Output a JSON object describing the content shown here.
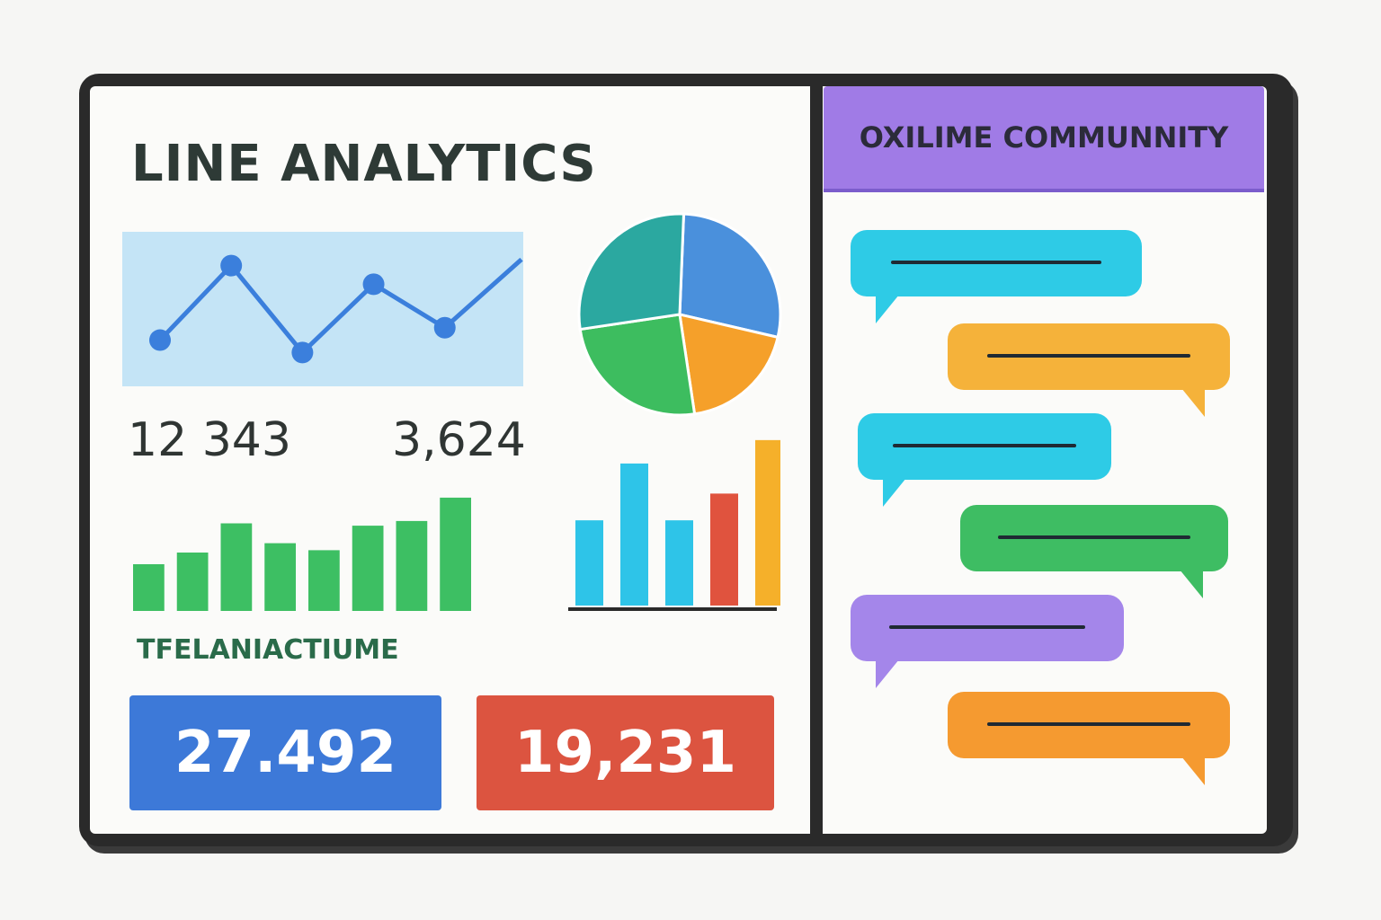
{
  "dashboard": {
    "title": "LINE ANALYTICS",
    "stats": [
      "12 343",
      "3,624"
    ],
    "caption": "TFELANIACTIUME",
    "kpis": [
      {
        "value": "27.492",
        "color": "#3d79d8"
      },
      {
        "value": "19,231",
        "color": "#dc5440"
      }
    ]
  },
  "community": {
    "title": "OXILIME COMMUNNITY",
    "header_color": "#a07be6",
    "messages": [
      {
        "side": "left",
        "color": "#2ecbe6"
      },
      {
        "side": "right",
        "color": "#f5b23a"
      },
      {
        "side": "left",
        "color": "#2ecbe6"
      },
      {
        "side": "right",
        "color": "#3ebd63"
      },
      {
        "side": "left",
        "color": "#a486ea"
      },
      {
        "side": "right",
        "color": "#f59a30"
      }
    ]
  },
  "chart_data": [
    {
      "type": "line",
      "values": [
        3,
        9,
        2,
        7.5,
        4,
        9.5
      ],
      "ylim": [
        0,
        11
      ],
      "line_color": "#3b7fdc",
      "fill_color": "#c4e4f6"
    },
    {
      "type": "pie",
      "slices": [
        {
          "value": 28,
          "color": "#4a90dc"
        },
        {
          "value": 19,
          "color": "#f5a02a"
        },
        {
          "value": 25,
          "color": "#3dbd5f"
        },
        {
          "value": 28,
          "color": "#2ba8a0"
        }
      ]
    },
    {
      "type": "bar",
      "values": [
        4,
        5,
        7.5,
        5.8,
        5.2,
        7.3,
        7.7,
        9.7
      ],
      "ylim": [
        0,
        10
      ],
      "color": "#3dbf63"
    },
    {
      "type": "bar",
      "values": [
        5.1,
        8.5,
        5.1,
        6.7,
        9.9
      ],
      "ylim": [
        0,
        10
      ],
      "colors": [
        "#2ec4e8",
        "#2ec4e8",
        "#2ec4e8",
        "#e0533e",
        "#f5b02a"
      ]
    }
  ]
}
